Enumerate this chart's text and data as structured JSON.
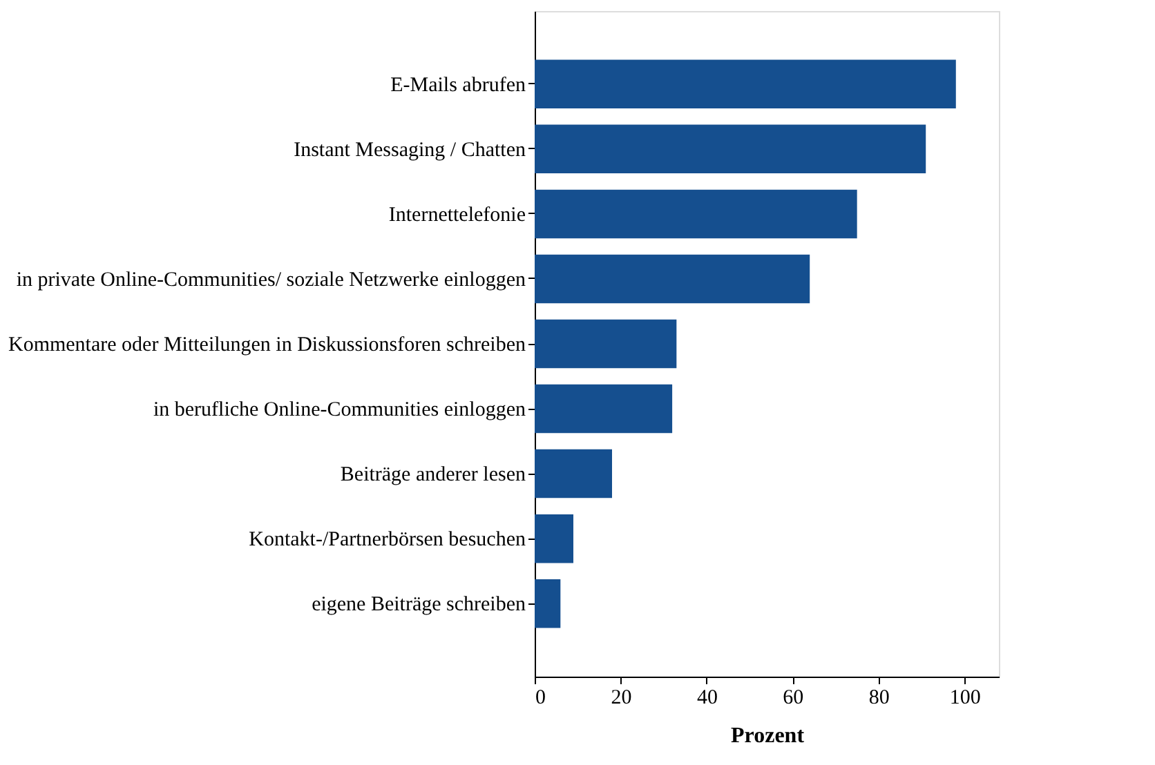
{
  "chart_data": {
    "type": "bar",
    "orientation": "horizontal",
    "xlabel": "Prozent",
    "categories": [
      "E-Mails abrufen",
      "Instant Messaging / Chatten",
      "Internettelefonie",
      "in private Online-Communities/ soziale Netzwerke einloggen",
      "Kommentare oder Mitteilungen in Diskussionsforen schreiben",
      "in berufliche Online-Communities einloggen",
      "Beiträge anderer lesen",
      "Kontakt-/Partnerbörsen besuchen",
      "eigene Beiträge schreiben"
    ],
    "values": [
      98,
      91,
      75,
      64,
      33,
      32,
      18,
      9,
      6
    ],
    "color": "#154f8f",
    "xlim": [
      0,
      108
    ],
    "xticks": [
      0,
      20,
      40,
      60,
      80,
      100
    ],
    "grid": false
  }
}
